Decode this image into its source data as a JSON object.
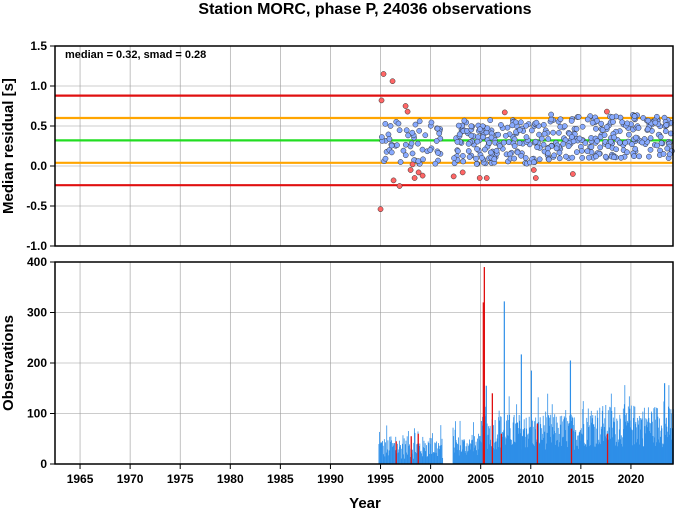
{
  "title": "Station MORC, phase P, 24036 observations",
  "chart_data": [
    {
      "type": "scatter",
      "ylabel": "Median residual [s]",
      "xlim": [
        1962.5,
        2024.2
      ],
      "ylim": [
        -1.0,
        1.5
      ],
      "yticks": [
        -1.0,
        -0.5,
        0.0,
        0.5,
        1.0,
        1.5
      ],
      "ytick_labels": [
        "-1.0",
        "-0.5",
        "0.0",
        "0.5",
        "1.0",
        "1.5"
      ],
      "annotation": "median = 0.32, smad = 0.28",
      "grid": true,
      "reference_lines": [
        {
          "value": 0.32,
          "color": "#22dd22"
        },
        {
          "value": 0.6,
          "color": "#ffa500"
        },
        {
          "value": 0.04,
          "color": "#ffa500"
        },
        {
          "value": 0.88,
          "color": "#e01010"
        },
        {
          "value": -0.24,
          "color": "#e01010"
        }
      ],
      "colors": {
        "inlier": "#88aaff",
        "outlier": "#ff6666"
      }
    },
    {
      "type": "bar",
      "xlabel": "Year",
      "ylabel": "Observations",
      "xlim": [
        1962.5,
        2024.2
      ],
      "ylim": [
        0,
        400
      ],
      "yticks": [
        0,
        100,
        200,
        300,
        400
      ],
      "ytick_labels": [
        "0",
        "100",
        "200",
        "300",
        "400"
      ],
      "xticks": [
        1965,
        1970,
        1975,
        1980,
        1985,
        1990,
        1995,
        2000,
        2005,
        2010,
        2015,
        2020
      ],
      "xtick_labels": [
        "1965",
        "1970",
        "1975",
        "1980",
        "1985",
        "1990",
        "1995",
        "2000",
        "2005",
        "2010",
        "2015",
        "2020"
      ],
      "grid": true,
      "colors": {
        "normal": "#2e8fe8",
        "outlier": "#e01010"
      },
      "red_bars": [
        {
          "x": 1996.5,
          "value": 45
        },
        {
          "x": 1998.0,
          "value": 55
        },
        {
          "x": 1998.7,
          "value": 60
        },
        {
          "x": 2005.3,
          "value": 390
        },
        {
          "x": 2005.2,
          "value": 320
        },
        {
          "x": 2006.1,
          "value": 140
        },
        {
          "x": 2007.0,
          "value": 60
        },
        {
          "x": 2010.6,
          "value": 80
        },
        {
          "x": 2014.0,
          "value": 70
        },
        {
          "x": 2017.6,
          "value": 60
        }
      ],
      "blue_peaks": [
        {
          "x": 2005.5,
          "value": 155
        },
        {
          "x": 2007.3,
          "value": 322
        },
        {
          "x": 2009.0,
          "value": 217
        },
        {
          "x": 2010.0,
          "value": 185
        },
        {
          "x": 2013.9,
          "value": 205
        },
        {
          "x": 2023.3,
          "value": 160
        }
      ]
    }
  ]
}
